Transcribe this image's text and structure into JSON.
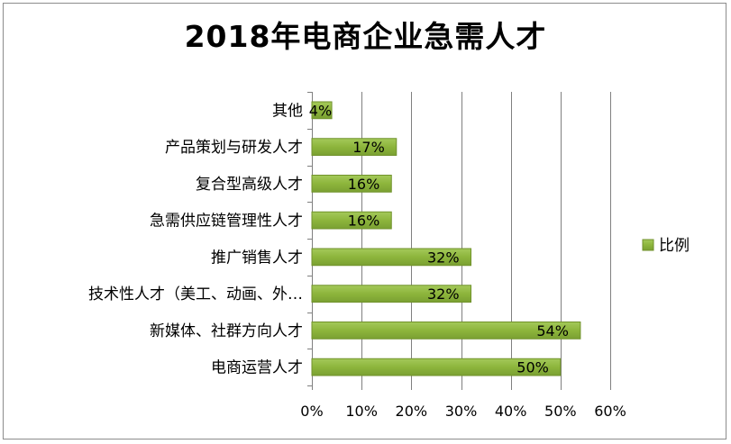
{
  "chart_data": {
    "type": "bar",
    "orientation": "horizontal",
    "title": "2018年电商企业急需人才",
    "categories": [
      "其他",
      "产品策划与研发人才",
      "复合型高级人才",
      "急需供应链管理性人才",
      "推广销售人才",
      "技术性人才（美工、动画、外…",
      "新媒体、社群方向人才",
      "电商运营人才"
    ],
    "series": [
      {
        "name": "比例",
        "values": [
          4,
          17,
          16,
          16,
          32,
          32,
          54,
          50
        ],
        "data_labels": [
          "4%",
          "17%",
          "16%",
          "16%",
          "32%",
          "32%",
          "54%",
          "50%"
        ],
        "color": "#8db53c"
      }
    ],
    "xlim": [
      0,
      60
    ],
    "x_ticks": [
      0,
      10,
      20,
      30,
      40,
      50,
      60
    ],
    "x_tick_labels": [
      "0%",
      "10%",
      "20%",
      "30%",
      "40%",
      "50%",
      "60%"
    ],
    "grid": "vertical",
    "legend": "right",
    "colors": {
      "bar_fill": "#8db53c",
      "bar_edge": "#71922c",
      "grid": "#808080",
      "border": "#8c8c8c"
    }
  }
}
